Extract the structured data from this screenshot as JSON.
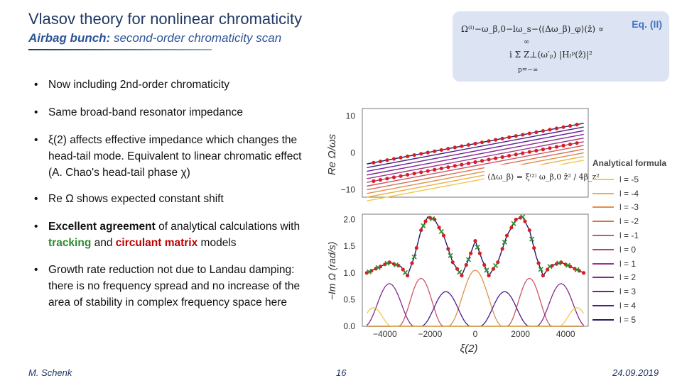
{
  "slide": {
    "title": "Vlasov theory for nonlinear chromaticity",
    "subtitle_bold": "Airbag bunch:",
    "subtitle_rest": " second-order chromaticity scan",
    "eq_label": "Eq. (II)",
    "eq_line1": "Ω⁽ˡ⁾−ω_β,0−lω_s−⟨(Δω_β)_φ⟩(ẑ) ∝",
    "eq_line2": "i Σ Z⊥(ω′ₚ) |Hₗᵖ(ẑ)|²",
    "eq_sum_top": "∞",
    "eq_sum_bottom": "p=−∞",
    "inset_eq": "⟨Δω_β⟩ = ξ⁽²⁾ ω_β,0 ẑ² / 4β_z²"
  },
  "bullets": [
    {
      "text": "Now including 2nd-order chromaticity"
    },
    {
      "text": "Same broad-band resonator impedance"
    },
    {
      "text": "ξ(2) affects effective impedance which changes the head-tail mode. Equivalent to linear chromatic effect (A. Chao's head-tail phase χ)"
    },
    {
      "text": "Re Ω shows expected constant shift"
    },
    {
      "pre": "Excellent agreement",
      "mid1": " of analytical calculations with ",
      "green": "tracking",
      "mid2": " and ",
      "red": "circulant matrix",
      "post": " models"
    },
    {
      "text": "Growth rate reduction not due to Landau damping: there is no frequency spread and no increase of the area of stability in complex frequency space here"
    }
  ],
  "footer": {
    "author": "M. Schenk",
    "page": "16",
    "date": "24.09.2019"
  },
  "legend": {
    "title": "Analytical formula",
    "entries": [
      "l = -5",
      "l = -4",
      "l = -3",
      "l = -2",
      "l = -1",
      "l = 0",
      "l = 1",
      "l = 2",
      "l = 3",
      "l = 4",
      "l = 5"
    ],
    "colors": [
      "#f2c94c",
      "#eab04a",
      "#e0904b",
      "#d67050",
      "#cc5568",
      "#b84079",
      "#a0338a",
      "#85298f",
      "#6a2391",
      "#4b1d8a",
      "#241a6b"
    ]
  },
  "chart_data": [
    {
      "type": "line",
      "title": "",
      "xlabel": "ξ(2)",
      "ylabel": "Re Ω/ωs",
      "xlim": [
        -5000,
        5000
      ],
      "ylim": [
        -12,
        12
      ],
      "yticks": [
        -10,
        0,
        10
      ],
      "x": [
        -4800,
        4800
      ],
      "series": [
        {
          "name": "l = -5",
          "values": [
            -13.0,
            -2.0
          ]
        },
        {
          "name": "l = -4",
          "values": [
            -12.0,
            -1.0
          ]
        },
        {
          "name": "l = -3",
          "values": [
            -11.0,
            0.0
          ]
        },
        {
          "name": "l = -2",
          "values": [
            -10.0,
            1.0
          ]
        },
        {
          "name": "l = -1",
          "values": [
            -9.0,
            2.0
          ]
        },
        {
          "name": "l = 0",
          "values": [
            -8.0,
            3.0
          ]
        },
        {
          "name": "l = 1",
          "values": [
            -7.0,
            4.0
          ]
        },
        {
          "name": "l = 2",
          "values": [
            -6.0,
            5.0
          ]
        },
        {
          "name": "l = 3",
          "values": [
            -5.0,
            6.0
          ]
        },
        {
          "name": "l = 4",
          "values": [
            -4.0,
            7.0
          ]
        },
        {
          "name": "l = 5",
          "values": [
            -3.0,
            8.0
          ]
        }
      ]
    },
    {
      "type": "line",
      "title": "",
      "xlabel": "ξ(2)",
      "ylabel": "−Im Ω (rad/s)",
      "xlim": [
        -5000,
        5000
      ],
      "ylim": [
        0.0,
        2.1
      ],
      "xticks": [
        -4000,
        -2000,
        0,
        2000,
        4000
      ],
      "yticks": [
        0.0,
        0.5,
        1.0,
        1.5,
        2.0
      ],
      "envelope": {
        "x": [
          -4800,
          -4300,
          -3800,
          -3300,
          -3000,
          -2700,
          -2400,
          -2100,
          -1800,
          -1400,
          -1000,
          -600,
          -300,
          0,
          300,
          600,
          1000,
          1400,
          1800,
          2100,
          2400,
          2700,
          3000,
          3300,
          3800,
          4300,
          4800
        ],
        "values": [
          1.0,
          1.1,
          1.2,
          1.12,
          0.95,
          1.3,
          1.8,
          2.05,
          2.0,
          1.7,
          1.2,
          0.95,
          1.25,
          1.6,
          1.25,
          0.95,
          1.2,
          1.7,
          2.0,
          2.05,
          1.8,
          1.3,
          0.95,
          1.12,
          1.2,
          1.1,
          1.0
        ]
      }
    }
  ]
}
